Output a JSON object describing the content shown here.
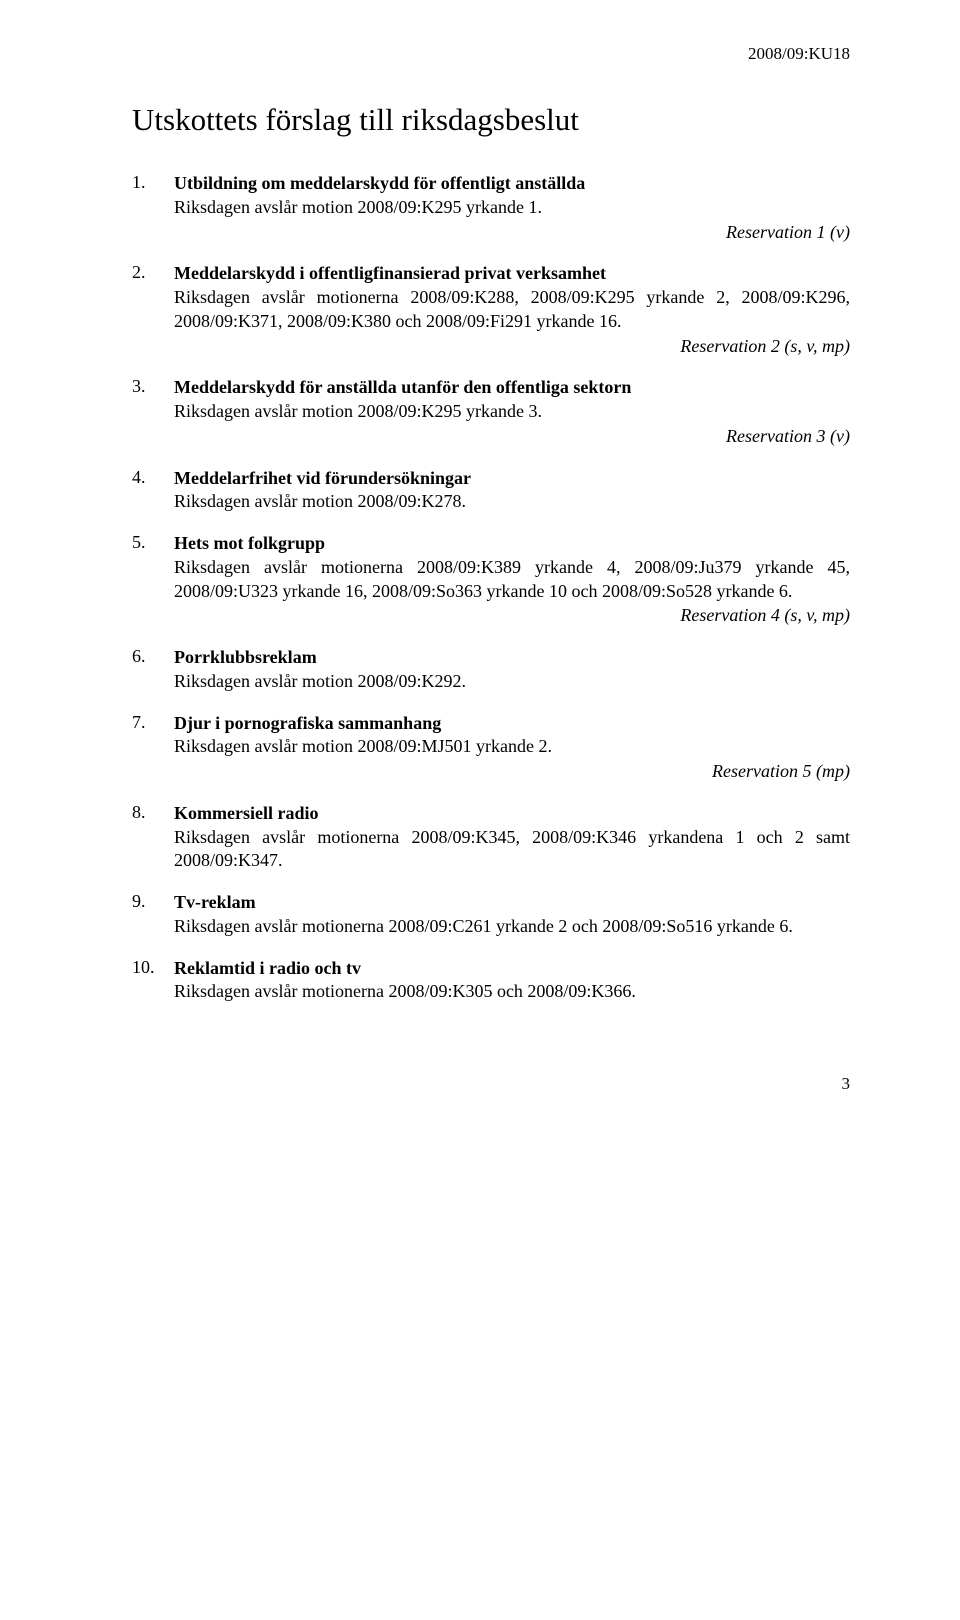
{
  "doc_ref": "2008/09:KU18",
  "title": "Utskottets förslag till riksdagsbeslut",
  "items": [
    {
      "num": "1.",
      "title": "Utbildning om meddelarskydd för offentligt anställda",
      "text": "Riksdagen avslår motion 2008/09:K295 yrkande 1.",
      "reservation": "Reservation 1 (v)"
    },
    {
      "num": "2.",
      "title": "Meddelarskydd i offentligfinansierad privat verksamhet",
      "text": "Riksdagen avslår motionerna 2008/09:K288, 2008/09:K295 yrkande 2, 2008/09:K296, 2008/09:K371, 2008/09:K380 och 2008/09:Fi291 yrkande 16.",
      "reservation": "Reservation 2 (s, v, mp)"
    },
    {
      "num": "3.",
      "title": "Meddelarskydd för anställda utanför den offentliga sektorn",
      "text": "Riksdagen avslår motion 2008/09:K295 yrkande 3.",
      "reservation": "Reservation 3 (v)"
    },
    {
      "num": "4.",
      "title": "Meddelarfrihet vid förundersökningar",
      "text": "Riksdagen avslår motion 2008/09:K278.",
      "reservation": ""
    },
    {
      "num": "5.",
      "title": "Hets mot folkgrupp",
      "text": "Riksdagen avslår motionerna 2008/09:K389 yrkande 4, 2008/09:Ju379 yrkande 45, 2008/09:U323 yrkande 16, 2008/09:So363 yrkande 10 och 2008/09:So528 yrkande 6.",
      "reservation": "Reservation 4 (s, v, mp)"
    },
    {
      "num": "6.",
      "title": "Porrklubbsreklam",
      "text": "Riksdagen avslår motion 2008/09:K292.",
      "reservation": ""
    },
    {
      "num": "7.",
      "title": "Djur i pornografiska sammanhang",
      "text": "Riksdagen avslår motion 2008/09:MJ501 yrkande 2.",
      "reservation": "Reservation 5 (mp)"
    },
    {
      "num": "8.",
      "title": "Kommersiell radio",
      "text": "Riksdagen avslår motionerna 2008/09:K345, 2008/09:K346 yrkandena 1 och 2 samt 2008/09:K347.",
      "reservation": ""
    },
    {
      "num": "9.",
      "title": "Tv-reklam",
      "text": "Riksdagen avslår motionerna 2008/09:C261 yrkande 2 och 2008/09:So516 yrkande 6.",
      "reservation": ""
    },
    {
      "num": "10.",
      "title": "Reklamtid i radio och tv",
      "text": "Riksdagen avslår motionerna 2008/09:K305 och 2008/09:K366.",
      "reservation": ""
    }
  ],
  "page_num": "3"
}
